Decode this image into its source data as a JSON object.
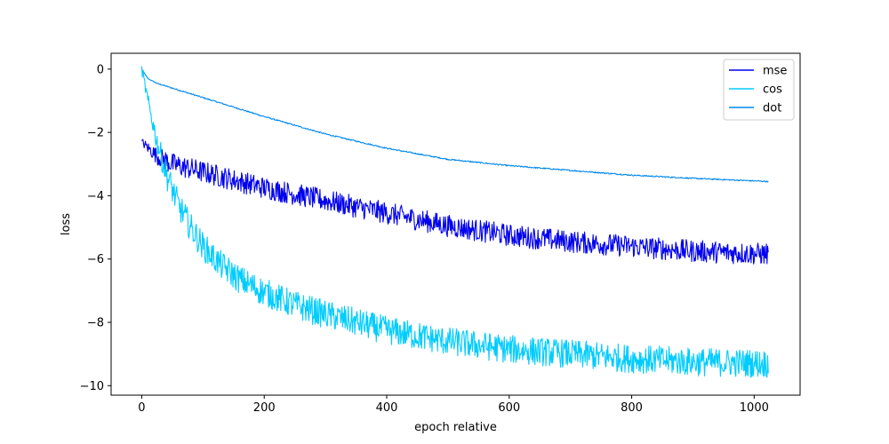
{
  "chart_data": {
    "type": "line",
    "title": "",
    "xlabel": "epoch relative",
    "ylabel": "loss",
    "xlim": [
      -50,
      1075
    ],
    "ylim": [
      -10.3,
      0.5
    ],
    "xticks": [
      0,
      200,
      400,
      600,
      800,
      1000
    ],
    "yticks": [
      0,
      -2,
      -4,
      -6,
      -8,
      -10
    ],
    "xtick_labels": [
      "0",
      "200",
      "400",
      "600",
      "800",
      "1000"
    ],
    "ytick_labels": [
      "0",
      "−2",
      "−4",
      "−6",
      "−8",
      "−10"
    ],
    "grid": false,
    "legend": "top-right",
    "series": [
      {
        "name": "mse",
        "color": "#0000ee",
        "noise": 0.35,
        "x": [
          0,
          25,
          50,
          100,
          150,
          200,
          300,
          400,
          500,
          600,
          700,
          800,
          900,
          1023
        ],
        "y": [
          -2.3,
          -2.75,
          -3.0,
          -3.25,
          -3.5,
          -3.75,
          -4.15,
          -4.55,
          -4.95,
          -5.25,
          -5.45,
          -5.6,
          -5.75,
          -5.85
        ]
      },
      {
        "name": "cos",
        "color": "#00ccff",
        "noise": 0.45,
        "x": [
          0,
          10,
          25,
          40,
          60,
          80,
          100,
          130,
          160,
          200,
          250,
          300,
          400,
          500,
          600,
          700,
          800,
          900,
          1023
        ],
        "y": [
          0.0,
          -1.0,
          -2.3,
          -3.3,
          -4.3,
          -5.0,
          -5.6,
          -6.2,
          -6.65,
          -7.05,
          -7.45,
          -7.75,
          -8.25,
          -8.6,
          -8.85,
          -9.0,
          -9.15,
          -9.25,
          -9.3
        ]
      },
      {
        "name": "dot",
        "color": "#0088ee",
        "noise": 0.02,
        "x": [
          0,
          10,
          25,
          50,
          100,
          200,
          300,
          400,
          500,
          600,
          700,
          800,
          900,
          1023
        ],
        "y": [
          0.0,
          -0.3,
          -0.45,
          -0.6,
          -0.9,
          -1.5,
          -2.05,
          -2.5,
          -2.85,
          -3.05,
          -3.2,
          -3.35,
          -3.45,
          -3.55
        ]
      }
    ]
  }
}
